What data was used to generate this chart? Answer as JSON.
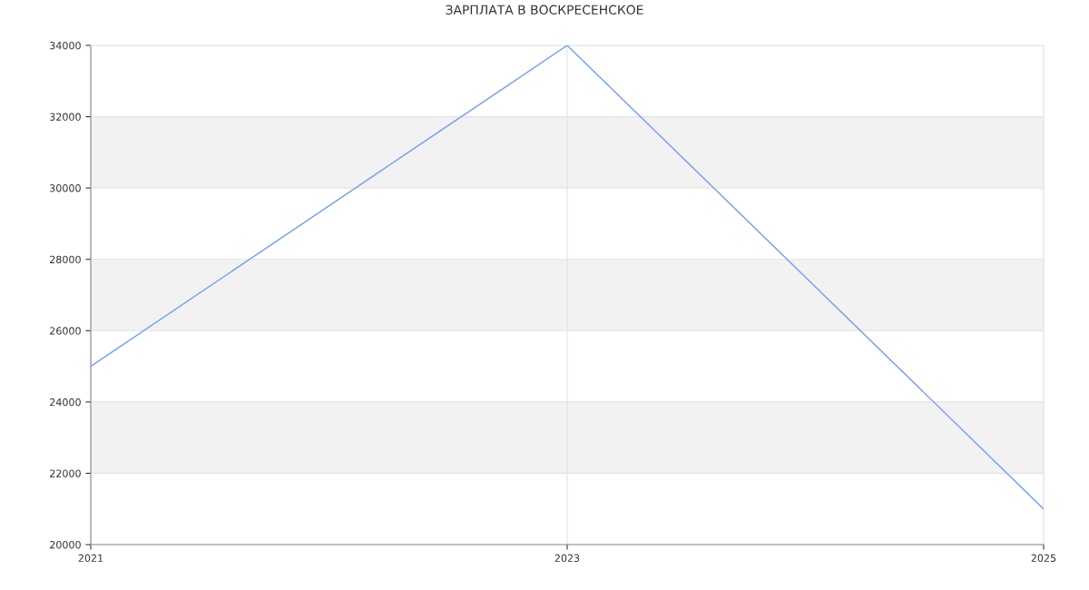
{
  "chart_data": {
    "type": "line",
    "title": "ЗАРПЛАТА В ВОСКРЕСЕНСКОЕ",
    "categories": [
      "2021",
      "2023",
      "2025"
    ],
    "series": [
      {
        "color": "#6f9ef0",
        "values": [
          25000,
          34000,
          21000
        ]
      }
    ],
    "ylim": [
      20000,
      34000
    ],
    "yticks": [
      20000,
      22000,
      24000,
      26000,
      28000,
      30000,
      32000,
      34000
    ],
    "bands": [
      {
        "axis": "y",
        "from": 22000,
        "to": 24000,
        "color": "#f2f2f2"
      },
      {
        "axis": "y",
        "from": 26000,
        "to": 28000,
        "color": "#f2f2f2"
      },
      {
        "axis": "y",
        "from": 30000,
        "to": 32000,
        "color": "#f2f2f2"
      }
    ],
    "grid": true,
    "legend": false,
    "marker": "none",
    "line_style": "solid"
  }
}
